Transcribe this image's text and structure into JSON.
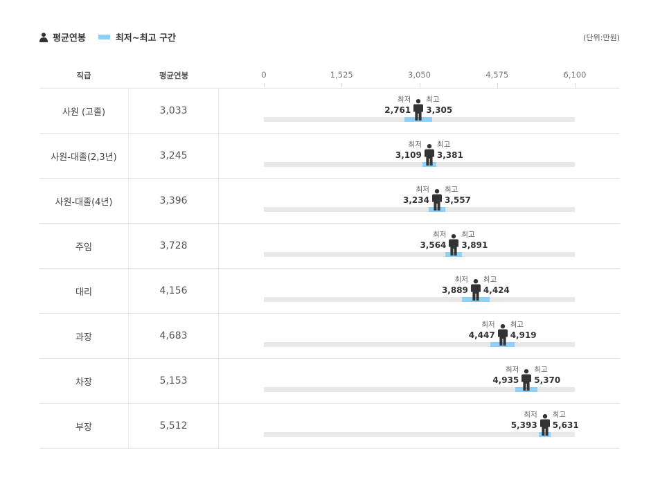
{
  "legend": {
    "avg_label": "평균연봉",
    "range_label": "최저~최고 구간",
    "unit": "(단위:만원)"
  },
  "table": {
    "col_grade": "직급",
    "col_avg": "평균연봉"
  },
  "labels": {
    "min": "최저",
    "max": "최고"
  },
  "colors": {
    "band": "#8fd0f7",
    "track": "#e8e8e8",
    "figure": "#333333"
  },
  "chart_data": {
    "type": "table",
    "axis": {
      "xlim": [
        0,
        6100
      ],
      "ticks": [
        0,
        1525,
        3050,
        4575,
        6100
      ],
      "tick_labels": [
        "0",
        "1,525",
        "3,050",
        "4,575",
        "6,100"
      ]
    },
    "rows": [
      {
        "grade": "사원 (고졸)",
        "avg": 3033,
        "avg_label": "3,033",
        "min": 2761,
        "min_label": "2,761",
        "max": 3305,
        "max_label": "3,305"
      },
      {
        "grade": "사원-대졸(2,3년)",
        "avg": 3245,
        "avg_label": "3,245",
        "min": 3109,
        "min_label": "3,109",
        "max": 3381,
        "max_label": "3,381"
      },
      {
        "grade": "사원-대졸(4년)",
        "avg": 3396,
        "avg_label": "3,396",
        "min": 3234,
        "min_label": "3,234",
        "max": 3557,
        "max_label": "3,557"
      },
      {
        "grade": "주임",
        "avg": 3728,
        "avg_label": "3,728",
        "min": 3564,
        "min_label": "3,564",
        "max": 3891,
        "max_label": "3,891"
      },
      {
        "grade": "대리",
        "avg": 4156,
        "avg_label": "4,156",
        "min": 3889,
        "min_label": "3,889",
        "max": 4424,
        "max_label": "4,424"
      },
      {
        "grade": "과장",
        "avg": 4683,
        "avg_label": "4,683",
        "min": 4447,
        "min_label": "4,447",
        "max": 4919,
        "max_label": "4,919"
      },
      {
        "grade": "차장",
        "avg": 5153,
        "avg_label": "5,153",
        "min": 4935,
        "min_label": "4,935",
        "max": 5370,
        "max_label": "5,370"
      },
      {
        "grade": "부장",
        "avg": 5512,
        "avg_label": "5,512",
        "min": 5393,
        "min_label": "5,393",
        "max": 5631,
        "max_label": "5,631"
      }
    ]
  }
}
